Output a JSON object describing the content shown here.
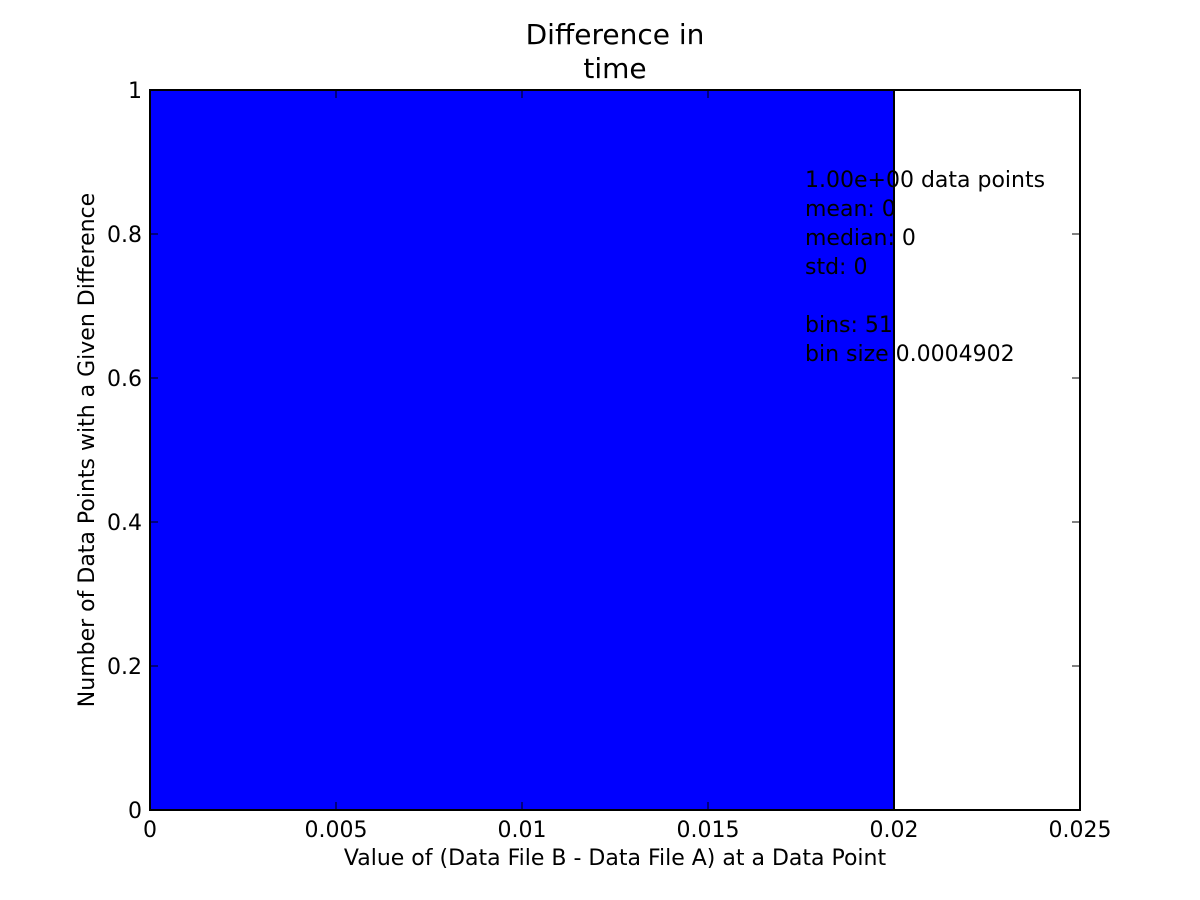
{
  "chart_data": {
    "type": "bar",
    "title_lines": [
      "Difference in",
      "time"
    ],
    "xlabel": "Value of (Data File B - Data File A) at a Data Point",
    "ylabel": "Number of Data Points with a Given Difference",
    "xlim": [
      0,
      0.025
    ],
    "ylim": [
      0,
      1
    ],
    "xticks": [
      0,
      0.005,
      0.01,
      0.015,
      0.02,
      0.025
    ],
    "xtick_labels": [
      "0",
      "0.005",
      "0.01",
      "0.015",
      "0.02",
      "0.025"
    ],
    "yticks": [
      0,
      0.2,
      0.4,
      0.6,
      0.8,
      1
    ],
    "ytick_labels": [
      "0",
      "0.2",
      "0.4",
      "0.6",
      "0.8",
      "1"
    ],
    "bars": [
      {
        "x_start": 0,
        "x_end": 0.02,
        "value": 1
      }
    ],
    "bar_color": "#0000ff",
    "grid": false,
    "annotation_lines": [
      "1.00e+00 data points",
      "mean: 0",
      "median: 0",
      "std: 0",
      "",
      "bins: 51",
      "bin size 0.0004902"
    ]
  }
}
